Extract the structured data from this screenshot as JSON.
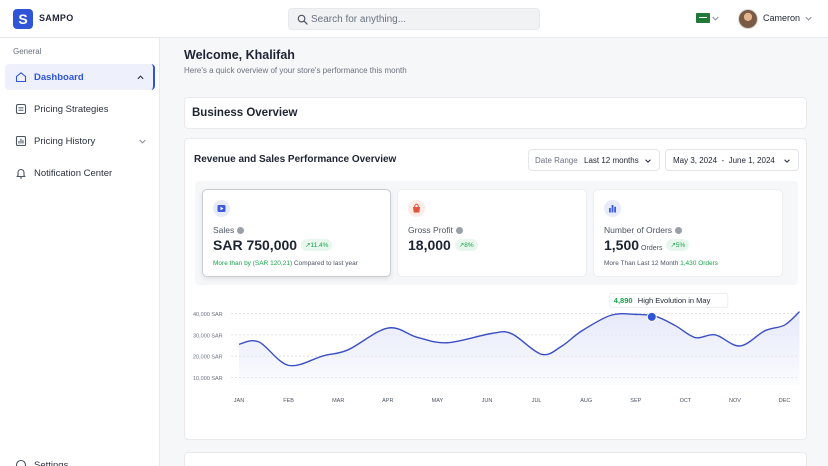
{
  "app": {
    "brand": "SAMPO",
    "logo_letter": "S"
  },
  "search": {
    "placeholder": "Search for anything...",
    "value": ""
  },
  "header": {
    "user_name": "Cameron",
    "flag": "saudi-arabia-flag-icon"
  },
  "sidebar": {
    "section_label": "General",
    "items": [
      {
        "label": "Dashboard",
        "icon": "home-icon",
        "active": true,
        "has_chevron": true
      },
      {
        "label": "Pricing Strategies",
        "icon": "list-icon",
        "active": false,
        "has_chevron": false
      },
      {
        "label": "Pricing History",
        "icon": "bar-chart-icon",
        "active": false,
        "has_chevron": true
      },
      {
        "label": "Notification Center",
        "icon": "bell-icon",
        "active": false,
        "has_chevron": false
      }
    ],
    "bottom_item": "Settings"
  },
  "welcome": {
    "title": "Welcome, Khalifah",
    "subtitle": "Here's a quick overview of your store's performance this month"
  },
  "business_overview": {
    "title": "Business Overview"
  },
  "performance": {
    "title": "Revenue and Sales Performance Overview",
    "date_range_label": "Date Range",
    "date_range_value": "Last 12 months",
    "dates_value": "May 3, 2024  -  June 1, 2024"
  },
  "kpis": [
    {
      "label": "Sales",
      "value": "SAR 750,000",
      "unit": "",
      "badge": "↗11.4%",
      "foot_prefix": "More than by (SAR 120,21)",
      "foot_suffix": " Compared to last year",
      "icon": "sales-icon",
      "icon_color": "#3b5bdb",
      "icon_bg": "#e7ebfb"
    },
    {
      "label": "Gross Profit",
      "value": "18,000",
      "unit": "",
      "badge": "↗8%",
      "foot_prefix": "",
      "foot_suffix": "",
      "icon": "shopping-bag-icon",
      "icon_color": "#e0533d",
      "icon_bg": "#fdebe7"
    },
    {
      "label": "Number of Orders",
      "value": "1,500",
      "unit": "Orders",
      "badge": "↗5%",
      "foot_prefix": "More Than Last 12 Month ",
      "foot_suffix": "1,430 Orders",
      "icon": "bar-chart-icon",
      "icon_color": "#3b5bdb",
      "icon_bg": "#e7ebfb"
    }
  ],
  "chart_data": {
    "type": "area",
    "categories": [
      "JAN",
      "FEB",
      "MAR",
      "APR",
      "MAY",
      "JUN",
      "JUL",
      "AUG",
      "SEP",
      "OCT",
      "NOV",
      "DEC"
    ],
    "x": [
      0,
      0.4,
      1.0,
      1.7,
      2.2,
      3.0,
      3.6,
      4.2,
      5.1,
      5.5,
      6.1,
      6.5,
      6.9,
      7.5,
      8.0,
      8.4,
      8.8,
      9.2,
      9.6,
      10.1,
      10.6,
      11.0,
      11.3
    ],
    "values": [
      25600,
      26700,
      15700,
      20200,
      23000,
      33200,
      28800,
      26300,
      30700,
      30500,
      20900,
      24600,
      31700,
      39200,
      39600,
      38700,
      34300,
      28700,
      30000,
      24800,
      31900,
      34600,
      40900
    ],
    "ylabels": [
      "10,000 SAR",
      "20,000 SAR",
      "30,000 SAR",
      "40,000 SAR"
    ],
    "yticks": [
      10000,
      20000,
      30000,
      40000
    ],
    "ylim": [
      6500,
      44000
    ],
    "grid": true,
    "color": "#3b4fc4",
    "fill": "#e6e9fa",
    "annotation": {
      "x": 8.0,
      "y": 39600,
      "value": "4,890",
      "label": "High Evolution in May"
    }
  }
}
